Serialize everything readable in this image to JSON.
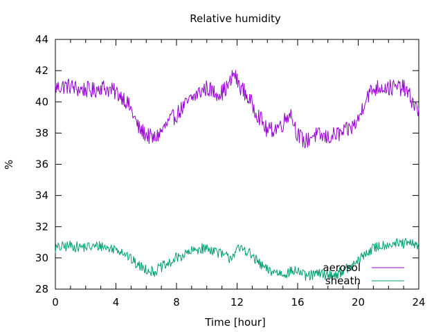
{
  "chart_data": {
    "type": "line",
    "title": "Relative humidity",
    "xlabel": "Time [hour]",
    "ylabel": "%",
    "xlim": [
      0,
      24
    ],
    "ylim": [
      28,
      44
    ],
    "xticks": [
      0,
      4,
      8,
      12,
      16,
      20,
      24
    ],
    "yticks": [
      28,
      30,
      32,
      34,
      36,
      38,
      40,
      42,
      44
    ],
    "grid": false,
    "legend_position": "bottom-right",
    "series": [
      {
        "name": "aerosol",
        "color": "#9400d3",
        "x": [
          0,
          0.5,
          1,
          1.5,
          2,
          2.5,
          3,
          3.5,
          4,
          4.5,
          5,
          5.5,
          6,
          6.5,
          7,
          7.5,
          8,
          8.5,
          9,
          9.5,
          10,
          10.5,
          11,
          11.5,
          11.8,
          12,
          12.5,
          13,
          13.5,
          14,
          14.5,
          15,
          15.5,
          16,
          16.5,
          17,
          17.5,
          18,
          18.5,
          19,
          19.5,
          20,
          20.5,
          21,
          21.5,
          22,
          22.5,
          23,
          23.5,
          24
        ],
        "y": [
          40.9,
          41.0,
          41.0,
          40.8,
          40.8,
          40.7,
          41.0,
          40.8,
          40.6,
          40.3,
          39.5,
          38.3,
          37.9,
          37.6,
          38.1,
          38.7,
          39.2,
          39.7,
          40.2,
          40.6,
          40.9,
          40.6,
          40.6,
          41.1,
          41.9,
          41.3,
          40.6,
          39.8,
          39.0,
          38.1,
          38.3,
          38.6,
          39.4,
          37.9,
          37.4,
          37.9,
          37.8,
          37.7,
          37.9,
          38.0,
          38.3,
          38.8,
          40.3,
          40.8,
          41.0,
          40.9,
          40.9,
          40.9,
          40.2,
          39.3
        ]
      },
      {
        "name": "sheath",
        "color": "#009e73",
        "x": [
          0,
          0.5,
          1,
          1.5,
          2,
          2.5,
          3,
          3.5,
          4,
          4.5,
          5,
          5.5,
          6,
          6.5,
          7,
          7.5,
          8,
          8.5,
          9,
          9.5,
          10,
          10.5,
          11,
          11.5,
          12,
          12.5,
          13,
          13.5,
          14,
          14.5,
          15,
          15.5,
          16,
          16.5,
          17,
          17.5,
          18,
          18.5,
          19,
          19.5,
          20,
          20.5,
          21,
          21.5,
          22,
          22.5,
          23,
          23.5,
          24
        ],
        "y": [
          30.6,
          30.7,
          30.8,
          30.7,
          30.7,
          30.7,
          30.8,
          30.6,
          30.6,
          30.4,
          29.9,
          29.5,
          29.3,
          29.1,
          29.4,
          29.6,
          30.0,
          30.2,
          30.4,
          30.6,
          30.6,
          30.5,
          30.2,
          30.0,
          30.5,
          30.6,
          30.1,
          29.6,
          29.2,
          29.1,
          29.0,
          29.1,
          29.2,
          28.8,
          28.9,
          29.0,
          28.9,
          28.9,
          29.2,
          29.4,
          29.8,
          30.3,
          30.6,
          30.8,
          30.9,
          30.9,
          30.9,
          30.9,
          30.8
        ]
      }
    ]
  }
}
